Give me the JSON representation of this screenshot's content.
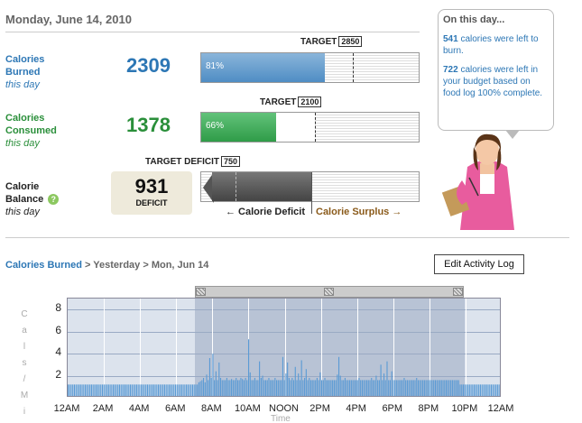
{
  "date": "Monday, June 14, 2010",
  "burned": {
    "label": "Calories Burned",
    "sub": "this day",
    "value": "2309",
    "target_label": "TARGET",
    "target": "2850",
    "percent_text": "81%",
    "percent": 81,
    "target_fraction": 0.69
  },
  "consumed": {
    "label": "Calories Consumed",
    "sub": "this day",
    "value": "1378",
    "target_label": "TARGET",
    "target": "2100",
    "percent_text": "66%",
    "percent": 66,
    "target_fraction": 0.52
  },
  "balance": {
    "label": "Calorie Balance",
    "sub": "this day",
    "help": "?",
    "value": "931",
    "kind": "DEFICIT",
    "target_label": "TARGET DEFICIT",
    "target": "750",
    "legend_deficit": "← Calorie Deficit",
    "legend_surplus": "Calorie Surplus →"
  },
  "bubble": {
    "title": "On this day...",
    "line1_num": "541",
    "line1_text": " calories were left to burn.",
    "line2_num": "722",
    "line2_text": " calories were left in your budget based on food log 100% complete."
  },
  "breadcrumb": {
    "link": "Calories Burned",
    "rest": " > Yesterday > Mon, Jun 14"
  },
  "edit_button": "Edit Activity Log",
  "colors": {
    "burned": "#2d77b5",
    "consumed": "#2a8f3a",
    "surplus": "#8a5a1a"
  },
  "chart_data": {
    "type": "bar",
    "xlabel": "Time",
    "ylabel": "Cals / Min",
    "ylim": [
      0,
      9
    ],
    "yticks": [
      "2",
      "4",
      "6",
      "8"
    ],
    "xticks": [
      "12AM",
      "2AM",
      "4AM",
      "6AM",
      "8AM",
      "10AM",
      "NOON",
      "2PM",
      "4PM",
      "6PM",
      "8PM",
      "10PM",
      "12AM"
    ],
    "selection_hours": [
      7,
      22
    ],
    "interval_minutes": 5,
    "series": [
      {
        "values": [
          1.2,
          1.2,
          1.2,
          1.2,
          1.2,
          1.2,
          1.2,
          1.2,
          1.2,
          1.2,
          1.2,
          1.2,
          1.2,
          1.2,
          1.2,
          1.2,
          1.2,
          1.2,
          1.2,
          1.2,
          1.2,
          1.2,
          1.2,
          1.2,
          1.2,
          1.2,
          1.2,
          1.2,
          1.2,
          1.2,
          1.2,
          1.2,
          1.2,
          1.2,
          1.2,
          1.2,
          1.2,
          1.2,
          1.2,
          1.2,
          1.2,
          1.2,
          1.2,
          1.2,
          1.2,
          1.2,
          1.2,
          1.2,
          1.2,
          1.2,
          1.2,
          1.2,
          1.2,
          1.2,
          1.2,
          1.2,
          1.2,
          1.2,
          1.2,
          1.2,
          1.2,
          1.2,
          1.2,
          1.2,
          1.2,
          1.2,
          1.2,
          1.2,
          1.2,
          1.2,
          1.2,
          1.2,
          1.2,
          1.2,
          1.2,
          1.2,
          1.2,
          1.2,
          1.2,
          1.2,
          1.2,
          1.2,
          1.2,
          1.2,
          1.4,
          1.5,
          1.6,
          1.8,
          1.4,
          2.1,
          1.6,
          3.6,
          1.8,
          4.0,
          1.6,
          2.4,
          1.6,
          3.2,
          1.8,
          1.6,
          1.6,
          1.6,
          1.8,
          1.6,
          1.6,
          1.7,
          1.6,
          1.6,
          1.8,
          1.6,
          1.6,
          1.8,
          1.7,
          1.6,
          1.8,
          1.6,
          5.3,
          2.3,
          1.6,
          1.6,
          1.8,
          1.6,
          1.6,
          3.3,
          1.8,
          2.0,
          1.6,
          1.6,
          1.6,
          1.8,
          1.6,
          1.6,
          1.6,
          1.8,
          1.6,
          1.6,
          1.6,
          1.6,
          3.7,
          1.6,
          2.2,
          3.2,
          1.8,
          1.6,
          1.8,
          1.6,
          2.8,
          1.6,
          2.2,
          1.6,
          3.4,
          1.6,
          1.8,
          2.6,
          1.6,
          1.8,
          1.6,
          1.6,
          1.6,
          1.6,
          1.8,
          1.6,
          2.3,
          1.6,
          1.6,
          1.8,
          1.6,
          1.6,
          1.6,
          1.6,
          1.6,
          1.6,
          1.6,
          2.1,
          3.7,
          2.0,
          1.6,
          1.6,
          1.8,
          1.6,
          1.6,
          1.6,
          1.6,
          1.6,
          1.6,
          1.6,
          1.6,
          1.8,
          1.6,
          1.6,
          1.6,
          1.6,
          1.6,
          1.6,
          1.6,
          1.8,
          1.6,
          1.6,
          2.0,
          1.6,
          1.6,
          3.0,
          1.6,
          2.2,
          1.6,
          3.3,
          1.6,
          1.6,
          2.4,
          1.6,
          1.6,
          1.6,
          1.6,
          1.6,
          1.6,
          1.6,
          1.8,
          1.6,
          1.6,
          1.6,
          1.6,
          1.6,
          1.6,
          1.6,
          1.8,
          1.6,
          1.6,
          1.6,
          1.6,
          1.6,
          1.6,
          1.6,
          1.6,
          1.6,
          1.6,
          1.6,
          1.6,
          1.6,
          1.6,
          1.6,
          1.6,
          1.6,
          1.6,
          1.6,
          1.6,
          1.6,
          1.6,
          1.6,
          1.6,
          1.6,
          1.6,
          1.6,
          1.2,
          1.2,
          1.2,
          1.2,
          1.2,
          1.2,
          1.2,
          1.2,
          1.2,
          1.2,
          1.2,
          1.2,
          1.2,
          1.2,
          1.2,
          1.2,
          1.2,
          1.2,
          1.2,
          1.2,
          1.2,
          1.2,
          1.2,
          1.2,
          1.2,
          1.2,
          1.2
        ]
      }
    ]
  }
}
